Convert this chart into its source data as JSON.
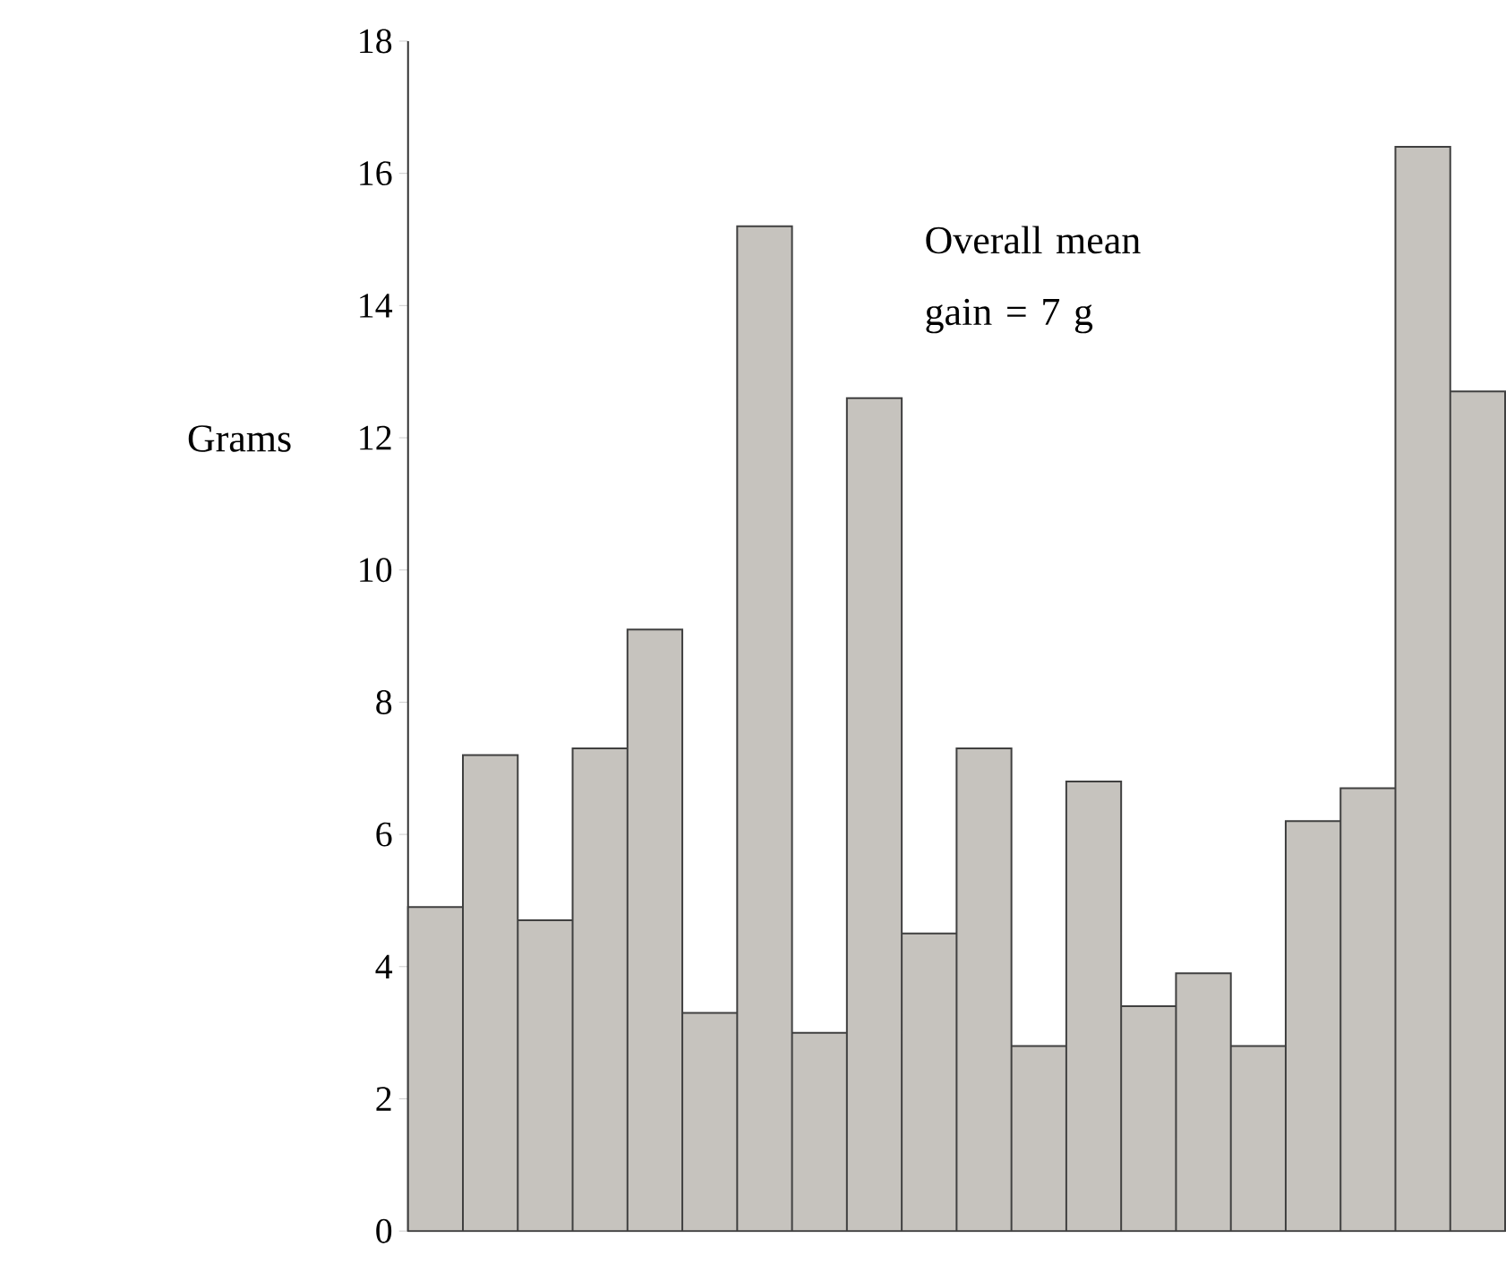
{
  "chart_data": {
    "type": "bar",
    "ylabel": "Grams",
    "categories": [
      null,
      null,
      null,
      null,
      null,
      null,
      null,
      null,
      null,
      null,
      null,
      null,
      null,
      null,
      null,
      null,
      null,
      null,
      null,
      null
    ],
    "values": [
      4.9,
      7.2,
      4.7,
      7.3,
      9.1,
      3.3,
      15.2,
      3.0,
      12.6,
      4.5,
      7.3,
      2.8,
      6.8,
      3.4,
      3.9,
      2.8,
      6.2,
      6.7,
      16.4,
      12.7
    ],
    "color": "#c6c3be",
    "ylim": [
      0,
      18
    ],
    "yticks": [
      0,
      2,
      4,
      6,
      8,
      10,
      12,
      14,
      16,
      18
    ],
    "annotations": [
      "Overall mean gain = 7 g"
    ]
  }
}
